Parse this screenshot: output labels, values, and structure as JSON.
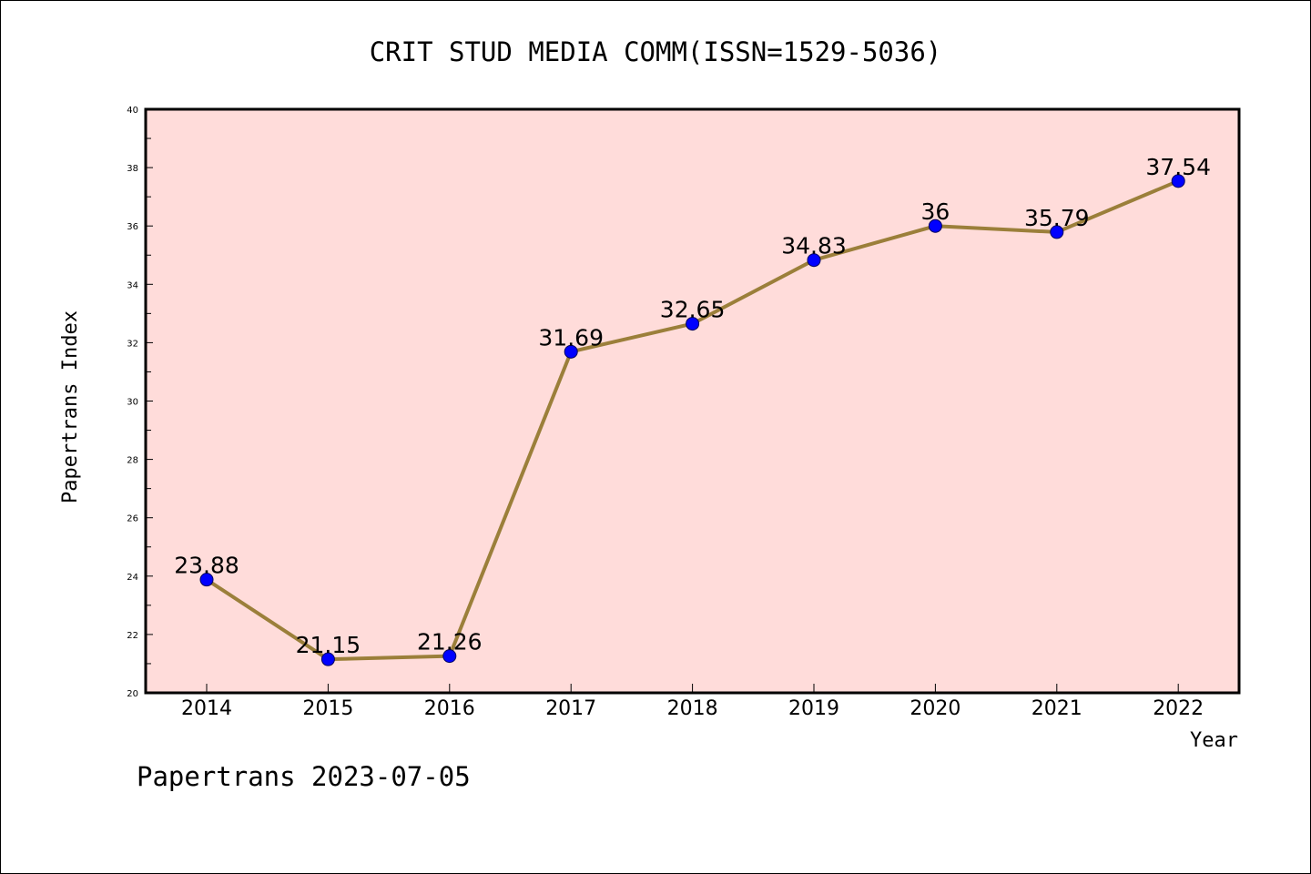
{
  "chart_data": {
    "type": "line",
    "title": "CRIT STUD MEDIA COMM(ISSN=1529-5036)",
    "xlabel": "Year",
    "ylabel": "Papertrans Index",
    "x": [
      "2014",
      "2015",
      "2016",
      "2017",
      "2018",
      "2019",
      "2020",
      "2021",
      "2022"
    ],
    "series": [
      {
        "values": [
          23.88,
          21.15,
          21.26,
          31.69,
          32.65,
          34.83,
          36,
          35.79,
          37.54
        ],
        "labels": [
          "23.88",
          "21.15",
          "21.26",
          "31.69",
          "32.65",
          "34.83",
          "36",
          "35.79",
          "37.54"
        ]
      }
    ],
    "ylim": [
      20,
      40
    ],
    "yticks": [
      "20",
      "22",
      "24",
      "26",
      "28",
      "30",
      "32",
      "34",
      "36",
      "38",
      "40"
    ],
    "grid": false,
    "footer": "Papertrans 2023-07-05",
    "colors": {
      "plot_background": "#ffdcda",
      "line": "#9b7f3a",
      "marker": "#0000ff",
      "axis": "#000000"
    }
  }
}
